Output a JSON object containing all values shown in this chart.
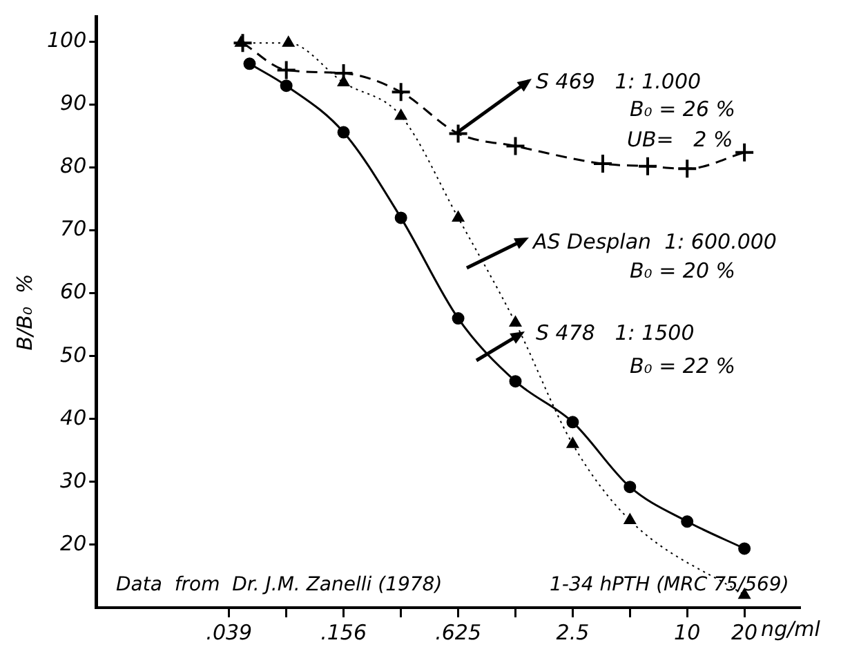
{
  "chart_data": {
    "type": "line",
    "ylabel": "B/B₀  %",
    "xlabel": "ng/ml",
    "log": "x",
    "xlim": [
      0.0078,
      39
    ],
    "ylim": [
      10,
      104
    ],
    "xticks": [
      {
        "value": 0.039,
        "label": ".039"
      },
      {
        "value": 0.078,
        "label": null
      },
      {
        "value": 0.156,
        "label": ".156"
      },
      {
        "value": 0.3125,
        "label": null
      },
      {
        "value": 0.625,
        "label": ".625"
      },
      {
        "value": 1.25,
        "label": null
      },
      {
        "value": 2.5,
        "label": "2.5"
      },
      {
        "value": 5,
        "label": null
      },
      {
        "value": 10,
        "label": "10"
      },
      {
        "value": 20,
        "label": "20"
      }
    ],
    "yticks": [
      20,
      30,
      40,
      50,
      60,
      70,
      80,
      90,
      100
    ],
    "grid": false,
    "legend": false,
    "series": [
      {
        "color": "#000000",
        "marker": "circle",
        "line_style": "solid",
        "x": [
          0.05,
          0.078,
          0.156,
          0.3125,
          0.625,
          1.25,
          2.5,
          5,
          10,
          20
        ],
        "values": [
          96.5,
          93,
          85.6,
          72,
          56,
          46,
          39.5,
          29.2,
          23.7,
          19.4
        ]
      },
      {
        "color": "#000000",
        "marker": "triangle",
        "line_style": "dotted",
        "x": [
          0.045,
          0.08,
          0.156,
          0.3125,
          0.625,
          1.25,
          2.5,
          5,
          20
        ],
        "values": [
          99.8,
          99.8,
          93.5,
          88.2,
          72,
          55.3,
          36,
          23.9,
          12
        ]
      },
      {
        "color": "#000000",
        "marker": "cross",
        "line_style": "dashed",
        "x": [
          0.046,
          0.078,
          0.156,
          0.3125,
          0.625,
          1.25,
          3.6,
          6.2,
          10,
          20
        ],
        "values": [
          99.8,
          95.5,
          95,
          92,
          85.4,
          83.4,
          80.6,
          80.2,
          79.8,
          82.4
        ]
      }
    ],
    "annotations": [
      "S 469   1: 1.000",
      "B₀ = 26 %",
      "UB=   2 %",
      "AS Desplan  1: 600.000",
      "B₀ = 20 %",
      "S 478   1: 1500",
      "B₀ = 22 %",
      "Data  from  Dr. J.M. Zanelli (1978)",
      "1-34 hPTH (MRC 75/569)"
    ]
  }
}
